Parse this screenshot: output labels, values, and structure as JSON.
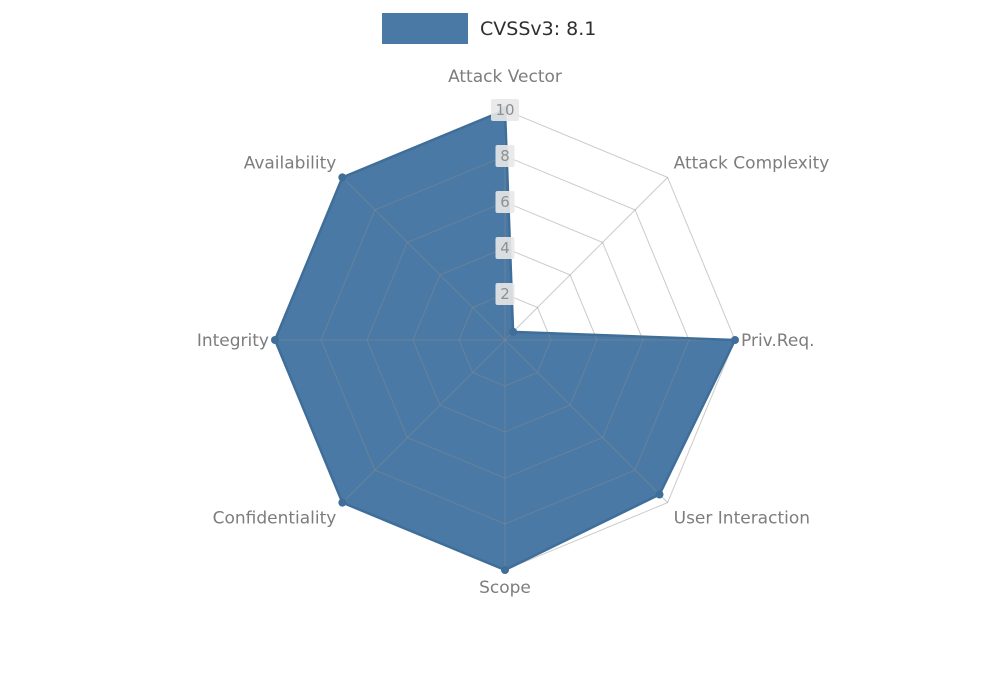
{
  "chart_data": {
    "type": "radar",
    "legend_label": "CVSSv3: 8.1",
    "categories": [
      "Attack Vector",
      "Attack Complexity",
      "Priv.Req.",
      "User Interaction",
      "Scope",
      "Confidentiality",
      "Integrity",
      "Availability"
    ],
    "values": [
      10,
      0.5,
      10,
      9.5,
      10,
      10,
      10,
      10
    ],
    "rmax": 10,
    "ticks": [
      2,
      4,
      6,
      8,
      10
    ],
    "grid": true,
    "legend_position": "top-center",
    "colors": {
      "fill": "#4a79a5",
      "stroke": "#3f6e99",
      "grid": "#8c8c8c",
      "axis_label": "#7d7d7d",
      "tick_text": "#8f8f8f",
      "tick_bg": "#e8e8e8"
    }
  }
}
